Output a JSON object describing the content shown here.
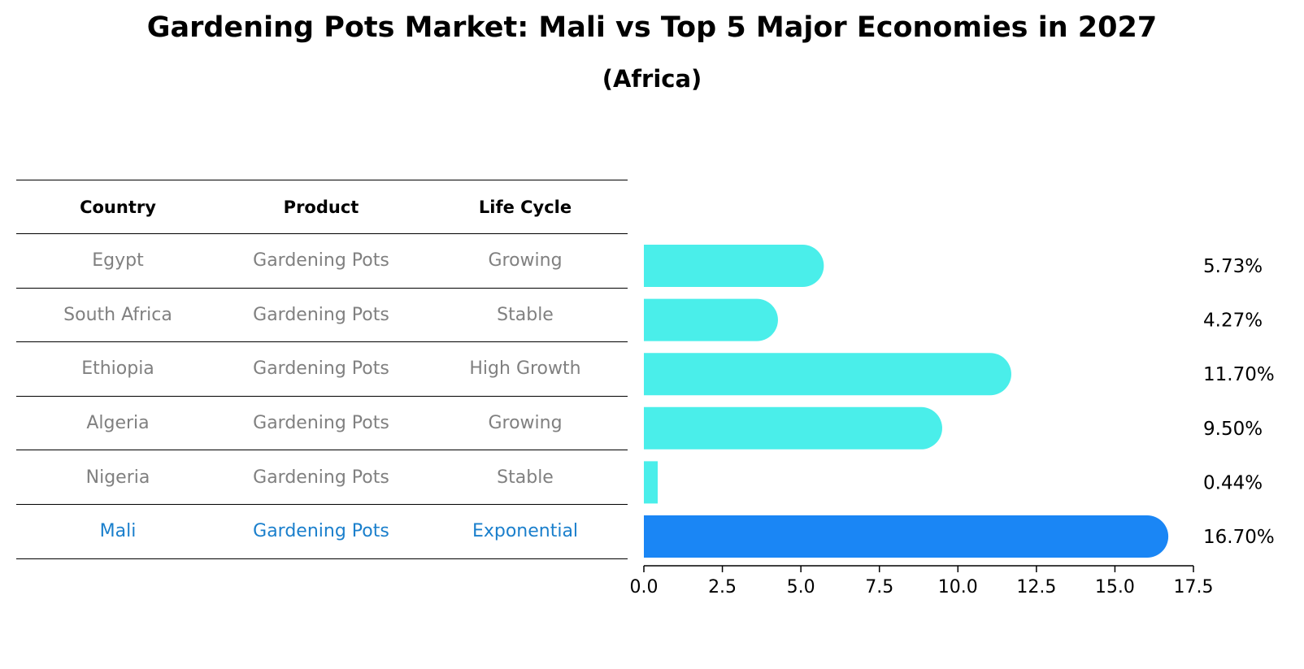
{
  "title": "Gardening Pots Market: Mali vs Top 5 Major Economies in 2027",
  "subtitle": "(Africa)",
  "table": {
    "headers": [
      "Country",
      "Product",
      "Life Cycle"
    ],
    "rows": [
      {
        "country": "Egypt",
        "product": "Gardening Pots",
        "life_cycle": "Growing"
      },
      {
        "country": "South Africa",
        "product": "Gardening Pots",
        "life_cycle": "Stable"
      },
      {
        "country": "Ethiopia",
        "product": "Gardening Pots",
        "life_cycle": "High Growth"
      },
      {
        "country": "Algeria",
        "product": "Gardening Pots",
        "life_cycle": "Growing"
      },
      {
        "country": "Nigeria",
        "product": "Gardening Pots",
        "life_cycle": "Stable"
      },
      {
        "country": "Mali",
        "product": "Gardening Pots",
        "life_cycle": "Exponential"
      }
    ]
  },
  "colors": {
    "others": "#4aeeea",
    "focus": "#1a86f5",
    "focus_text": "#1a7fcc",
    "muted_text": "#808080"
  },
  "chart_data": {
    "type": "bar",
    "orientation": "horizontal",
    "categories": [
      "Egypt",
      "South Africa",
      "Ethiopia",
      "Algeria",
      "Nigeria",
      "Mali"
    ],
    "values": [
      5.73,
      4.27,
      11.7,
      9.5,
      0.44,
      16.7
    ],
    "value_labels": [
      "5.73%",
      "4.27%",
      "11.70%",
      "9.50%",
      "0.44%",
      "16.70%"
    ],
    "highlight": "Mali",
    "xlim": [
      0,
      17.5
    ],
    "xticks": [
      0.0,
      2.5,
      5.0,
      7.5,
      10.0,
      12.5,
      15.0,
      17.5
    ],
    "xtick_labels": [
      "0.0",
      "2.5",
      "5.0",
      "7.5",
      "10.0",
      "12.5",
      "15.0",
      "17.5"
    ],
    "title": "Gardening Pots Market: Mali vs Top 5 Major Economies in 2027",
    "subtitle": "(Africa)",
    "xlabel": "",
    "ylabel": "",
    "grid": false
  }
}
